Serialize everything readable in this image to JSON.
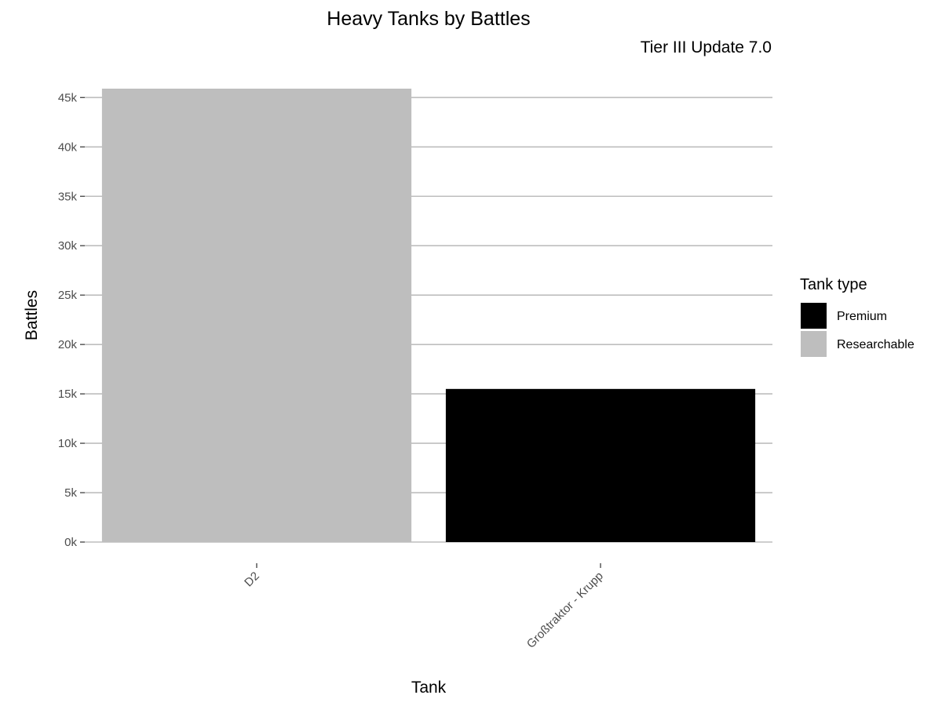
{
  "chart_data": {
    "type": "bar",
    "title": "Heavy Tanks by Battles",
    "subtitle": "Tier III Update 7.0",
    "xlabel": "Tank",
    "ylabel": "Battles",
    "categories": [
      "D2",
      "Großtraktor - Krupp"
    ],
    "values": [
      45900,
      15500
    ],
    "bar_types": [
      "Researchable",
      "Premium"
    ],
    "ylim": [
      0,
      45900
    ],
    "y_ticks": [
      0,
      5000,
      10000,
      15000,
      20000,
      25000,
      30000,
      35000,
      40000,
      45000
    ],
    "y_tick_labels": [
      "0k",
      "5k",
      "10k",
      "15k",
      "20k",
      "25k",
      "30k",
      "35k",
      "40k",
      "45k"
    ],
    "grid": "horizontal major",
    "legend": {
      "title": "Tank type",
      "position": "right",
      "items": [
        {
          "label": "Premium",
          "color": "#000000"
        },
        {
          "label": "Researchable",
          "color": "#bebebe"
        }
      ]
    },
    "colors": {
      "Premium": "#000000",
      "Researchable": "#bebebe",
      "grid": "#bebebe",
      "axis_text": "#4d4d4d"
    }
  }
}
